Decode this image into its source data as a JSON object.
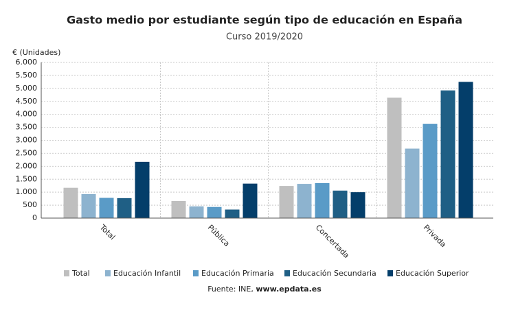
{
  "chart_data": {
    "type": "bar",
    "title": "Gasto medio por estudiante según tipo de educación en España",
    "subtitle": "Curso 2019/2020",
    "y_label": "€ (Unidades)",
    "source_prefix": "Fuente: INE,",
    "source_link": "www.epdata.es",
    "categories": [
      "Total",
      "Pública",
      "Concertada",
      "Privada"
    ],
    "series": [
      {
        "name": "Total",
        "color": "#bfbfbf",
        "values": [
          1170,
          660,
          1240,
          4640
        ]
      },
      {
        "name": "Educación Infantil",
        "color": "#8db3cf",
        "values": [
          925,
          450,
          1320,
          2680
        ]
      },
      {
        "name": "Educación Primaria",
        "color": "#5a9bc7",
        "values": [
          780,
          430,
          1350,
          3630
        ]
      },
      {
        "name": "Educación Secundaria",
        "color": "#1f5f85",
        "values": [
          770,
          330,
          1060,
          4920
        ]
      },
      {
        "name": "Educación Superior",
        "color": "#043e6a",
        "values": [
          2170,
          1330,
          1000,
          5250
        ]
      }
    ],
    "ylim": [
      0,
      6000
    ],
    "yticks": [
      0,
      {
        "value": 500,
        "label": "500"
      },
      {
        "value": 1000,
        "label": "1.000"
      },
      {
        "value": 1500,
        "label": "1.500"
      },
      {
        "value": 2000,
        "label": "2.000"
      },
      {
        "value": 2500,
        "label": "2.500"
      },
      {
        "value": 3000,
        "label": "3.000"
      },
      {
        "value": 3500,
        "label": "3.500"
      },
      {
        "value": 4000,
        "label": "4.000"
      },
      {
        "value": 4500,
        "label": "4.500"
      },
      {
        "value": 5000,
        "label": "5.000"
      },
      {
        "value": 5500,
        "label": "5.500"
      },
      {
        "value": 6000,
        "label": "6.000"
      }
    ],
    "grid": true,
    "legend": "bottom"
  }
}
